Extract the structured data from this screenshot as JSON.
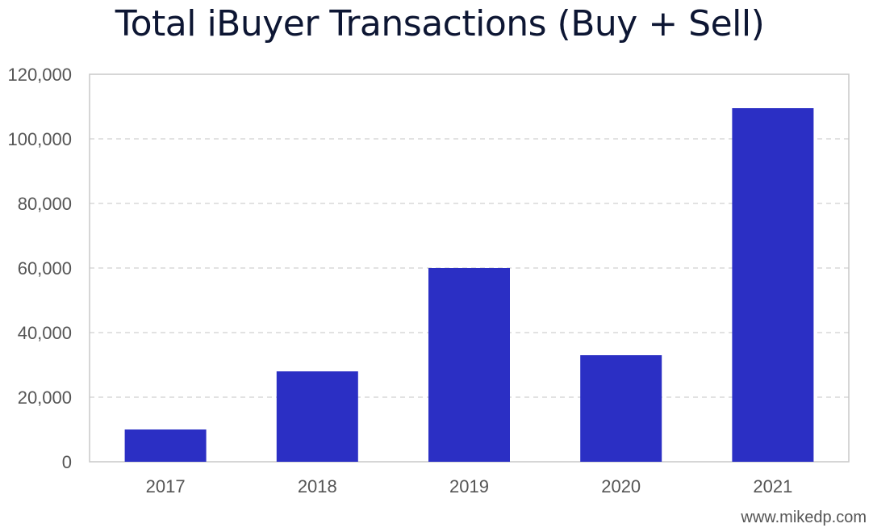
{
  "chart_data": {
    "type": "bar",
    "title": "Total iBuyer Transactions (Buy + Sell)",
    "xlabel": "",
    "ylabel": "",
    "categories": [
      "2017",
      "2018",
      "2019",
      "2020",
      "2021"
    ],
    "values": [
      10000,
      28000,
      60000,
      33000,
      109500
    ],
    "ylim": [
      0,
      120000
    ],
    "yticks": [
      0,
      20000,
      40000,
      60000,
      80000,
      100000,
      120000
    ],
    "ytick_labels": [
      "0",
      "20,000",
      "40,000",
      "60,000",
      "80,000",
      "100,000",
      "120,000"
    ],
    "grid": true,
    "legend": "none",
    "colors": {
      "bar": "#2b2fc4",
      "grid": "#d0d0d0",
      "frame": "#c8c8c8",
      "tick_text": "#555555"
    }
  },
  "watermark": "www.mikedp.com"
}
